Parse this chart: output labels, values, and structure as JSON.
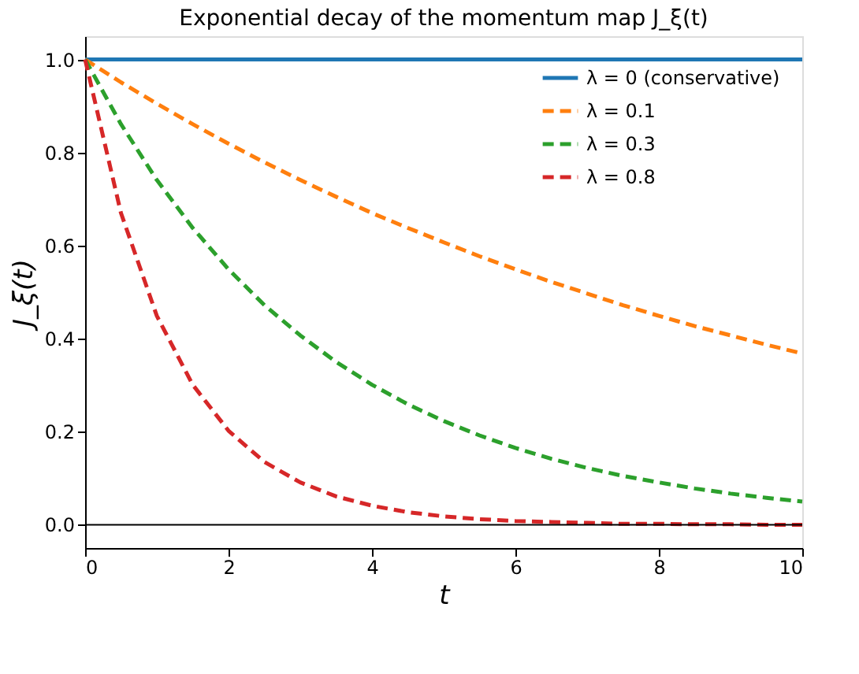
{
  "chart_data": {
    "type": "line",
    "title": "Exponential decay of the momentum map J_ξ(t)",
    "xlabel": "t",
    "ylabel": "J_ξ(t)",
    "x": [
      0,
      0.5,
      1,
      1.5,
      2,
      2.5,
      3,
      3.5,
      4,
      4.5,
      5,
      5.5,
      6,
      6.5,
      7,
      7.5,
      8,
      8.5,
      9,
      9.5,
      10
    ],
    "series": [
      {
        "name": "λ = 0 (conservative)",
        "color": "#1f77b4",
        "line_style": "solid",
        "values": [
          1,
          1,
          1,
          1,
          1,
          1,
          1,
          1,
          1,
          1,
          1,
          1,
          1,
          1,
          1,
          1,
          1,
          1,
          1,
          1,
          1
        ]
      },
      {
        "name": "λ = 0.1",
        "color": "#ff7f0e",
        "line_style": "dashed",
        "values": [
          1,
          0.951,
          0.905,
          0.861,
          0.819,
          0.779,
          0.741,
          0.705,
          0.67,
          0.638,
          0.607,
          0.577,
          0.549,
          0.522,
          0.497,
          0.472,
          0.449,
          0.427,
          0.407,
          0.387,
          0.368
        ]
      },
      {
        "name": "λ = 0.3",
        "color": "#2ca02c",
        "line_style": "dashed",
        "values": [
          1,
          0.861,
          0.741,
          0.638,
          0.549,
          0.472,
          0.407,
          0.35,
          0.301,
          0.259,
          0.223,
          0.192,
          0.165,
          0.142,
          0.122,
          0.105,
          0.091,
          0.078,
          0.067,
          0.058,
          0.05
        ]
      },
      {
        "name": "λ = 0.8",
        "color": "#d62728",
        "line_style": "dashed",
        "values": [
          1,
          0.67,
          0.449,
          0.301,
          0.202,
          0.135,
          0.091,
          0.061,
          0.041,
          0.027,
          0.018,
          0.012,
          0.008,
          0.006,
          0.004,
          0.002,
          0.002,
          0.001,
          0.001,
          0.0,
          0.0
        ]
      }
    ],
    "xlim": [
      0,
      10
    ],
    "xticks": [
      0,
      2,
      4,
      6,
      8,
      10
    ],
    "ylim": [
      -0.05,
      1.05
    ],
    "yticks": [
      {
        "value": 0,
        "label": "0.0"
      },
      {
        "value": 0.2,
        "label": "0.2"
      },
      {
        "value": 0.4,
        "label": "0.4"
      },
      {
        "value": 0.6,
        "label": "0.6"
      },
      {
        "value": 0.8,
        "label": "0.8"
      },
      {
        "value": 1,
        "label": "1.0"
      }
    ],
    "ref_lines": [
      {
        "axis": "y",
        "value": 0,
        "color": "#000000"
      }
    ],
    "grid": false,
    "legend": "top right",
    "marker": "none"
  }
}
